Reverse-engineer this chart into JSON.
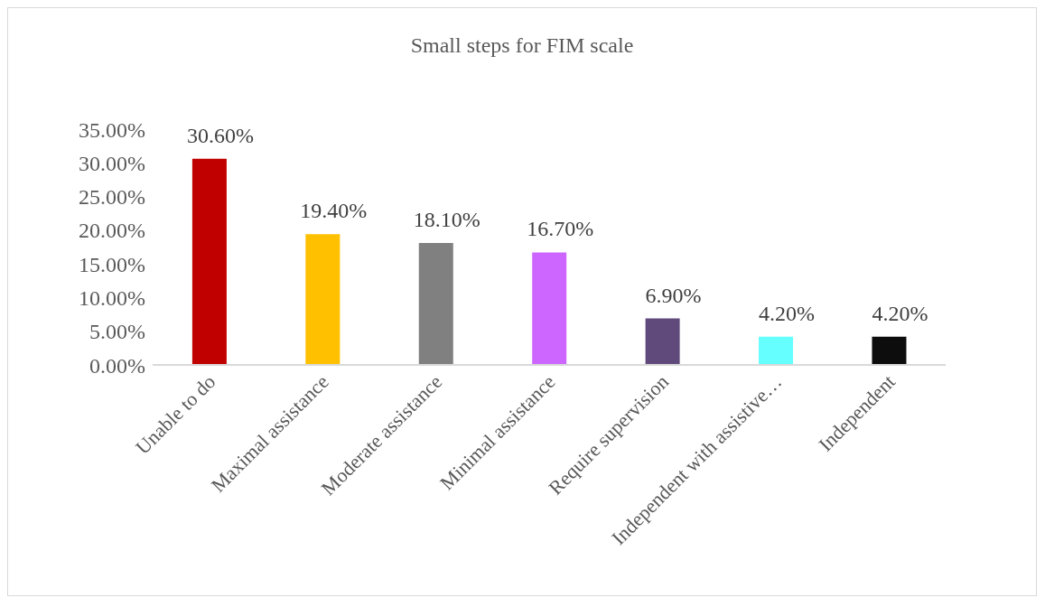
{
  "chart_data": {
    "type": "bar",
    "title": "Small steps for FIM scale",
    "categories": [
      "Unable to do",
      "Maximal assistance",
      "Moderate assistance",
      "Minimal assistance",
      "Require supervision",
      "Independent with assistive…",
      "Independent"
    ],
    "values": [
      30.6,
      19.4,
      18.1,
      16.7,
      6.9,
      4.2,
      4.2
    ],
    "colors": [
      "#c00000",
      "#ffc000",
      "#808080",
      "#cc66ff",
      "#604a7b",
      "#66ffff",
      "#0d0d0d"
    ],
    "value_labels": [
      "30.60%",
      "19.40%",
      "18.10%",
      "16.70%",
      "6.90%",
      "4.20%",
      "4.20%"
    ],
    "ylim": [
      0,
      35
    ],
    "yticks": [
      {
        "value": 0,
        "label": "0.00%"
      },
      {
        "value": 5,
        "label": "5.00%"
      },
      {
        "value": 10,
        "label": "10.00%"
      },
      {
        "value": 15,
        "label": "15.00%"
      },
      {
        "value": 20,
        "label": "20.00%"
      },
      {
        "value": 25,
        "label": "25.00%"
      },
      {
        "value": 30,
        "label": "30.00%"
      },
      {
        "value": 35,
        "label": "35.00%"
      }
    ],
    "grid": false,
    "legend": false
  }
}
